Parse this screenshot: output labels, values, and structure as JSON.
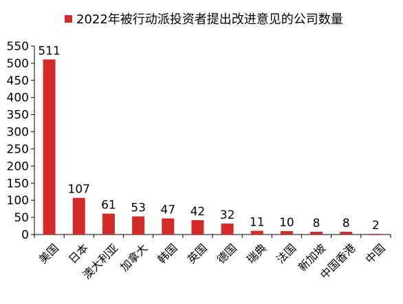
{
  "chart_data": {
    "type": "bar",
    "legend": "2022年被行动派投资者提出改进意见的公司数量",
    "legend_position": "top",
    "categories": [
      "美国",
      "日本",
      "澳大利亚",
      "加拿大",
      "韩国",
      "英国",
      "德国",
      "瑞典",
      "法国",
      "新加坡",
      "中国香港",
      "中国"
    ],
    "values": [
      511,
      107,
      61,
      53,
      47,
      42,
      32,
      11,
      10,
      8,
      8,
      2
    ],
    "data_labels": [
      "511",
      "107",
      "61",
      "53",
      "47",
      "42",
      "32",
      "11",
      "10",
      "8",
      "8",
      "2"
    ],
    "ylim": [
      0,
      550
    ],
    "yticks": [
      0,
      50,
      100,
      150,
      200,
      250,
      300,
      350,
      400,
      450,
      500,
      550
    ],
    "grid": false,
    "bar_color": "#d42a2a",
    "title": "",
    "xlabel": "",
    "ylabel": ""
  }
}
